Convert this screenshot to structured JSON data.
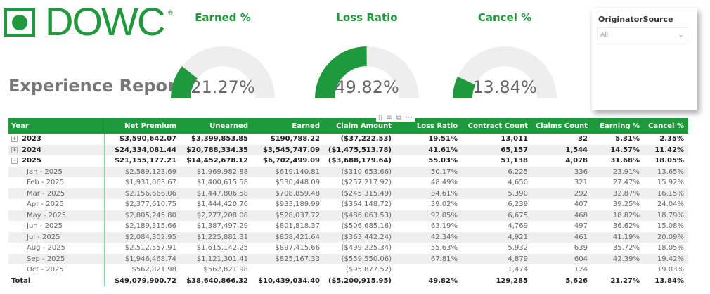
{
  "logo": {
    "text": "DOWC",
    "reg": "®"
  },
  "title": "Experience Report",
  "gauges": [
    {
      "title": "Earned %",
      "value_label": "21.27%",
      "value": 21.27
    },
    {
      "title": "Loss Ratio",
      "value_label": "49.82%",
      "value": 49.82
    },
    {
      "title": "Cancel %",
      "value_label": "13.84%",
      "value": 13.84
    }
  ],
  "colors": {
    "accent": "#1e9a3c",
    "track": "#eeeeee"
  },
  "slicer": {
    "title": "OriginatorSource",
    "value": "All"
  },
  "table": {
    "headers": [
      "Year",
      "Net Premium",
      "Unearned",
      "Earned",
      "Claim Amount",
      "Loss Ratio",
      "Contract Count",
      "Claims Count",
      "Earning %",
      "Cancel %"
    ],
    "rows": [
      {
        "type": "year",
        "expand": "+",
        "cells": [
          "2023",
          "$3,590,642.07",
          "$3,399,853.85",
          "$190,788.22",
          "($37,222.53)",
          "19.51%",
          "13,011",
          "32",
          "5.31%",
          "2.35%"
        ]
      },
      {
        "type": "year",
        "expand": "+",
        "cells": [
          "2024",
          "$24,334,081.44",
          "$20,788,334.35",
          "$3,545,747.09",
          "($1,475,513.78)",
          "41.61%",
          "65,157",
          "1,544",
          "14.57%",
          "11.42%"
        ]
      },
      {
        "type": "year",
        "expand": "−",
        "cells": [
          "2025",
          "$21,155,177.21",
          "$14,452,678.12",
          "$6,702,499.09",
          "($3,688,179.64)",
          "55.03%",
          "51,138",
          "4,078",
          "31.68%",
          "18.05%"
        ]
      },
      {
        "type": "month",
        "cells": [
          "Jan - 2025",
          "$2,589,123.69",
          "$1,969,982.88",
          "$619,140.81",
          "($310,653.66)",
          "50.17%",
          "6,225",
          "336",
          "23.91%",
          "13.65%"
        ]
      },
      {
        "type": "month",
        "cells": [
          "Feb - 2025",
          "$1,931,063.67",
          "$1,400,615.58",
          "$530,448.09",
          "($257,217.92)",
          "48.49%",
          "4,650",
          "321",
          "27.47%",
          "15.92%"
        ]
      },
      {
        "type": "month",
        "cells": [
          "Mar - 2025",
          "$2,156,666.06",
          "$1,447,806.58",
          "$708,859.48",
          "($245,315.49)",
          "34.61%",
          "5,390",
          "292",
          "32.87%",
          "16.15%"
        ]
      },
      {
        "type": "month",
        "cells": [
          "Apr - 2025",
          "$2,377,610.75",
          "$1,444,420.76",
          "$933,189.99",
          "($364,148.72)",
          "39.02%",
          "6,239",
          "407",
          "39.25%",
          "24.04%"
        ]
      },
      {
        "type": "month",
        "cells": [
          "May - 2025",
          "$2,805,245.80",
          "$2,277,208.08",
          "$528,037.72",
          "($486,063.53)",
          "92.05%",
          "6,675",
          "468",
          "18.82%",
          "18.79%"
        ]
      },
      {
        "type": "month",
        "cells": [
          "Jun - 2025",
          "$2,189,315.66",
          "$1,387,497.29",
          "$801,818.37",
          "($506,685.16)",
          "63.19%",
          "4,769",
          "497",
          "36.62%",
          "15.08%"
        ]
      },
      {
        "type": "month",
        "cells": [
          "Jul - 2025",
          "$2,084,302.95",
          "$1,225,881.31",
          "$858,421.64",
          "($363,442.24)",
          "42.34%",
          "4,921",
          "461",
          "41.19%",
          "20.09%"
        ]
      },
      {
        "type": "month",
        "cells": [
          "Aug - 2025",
          "$2,512,557.91",
          "$1,615,142.25",
          "$897,415.66",
          "($499,225.34)",
          "55.63%",
          "5,932",
          "639",
          "35.72%",
          "18.05%"
        ]
      },
      {
        "type": "month",
        "cells": [
          "Sep - 2025",
          "$1,946,468.74",
          "$1,121,301.41",
          "$825,167.33",
          "($559,550.06)",
          "67.81%",
          "4,879",
          "604",
          "42.39%",
          "19.42%"
        ]
      },
      {
        "type": "month",
        "cells": [
          "Oct - 2025",
          "$562,821.98",
          "$562,821.98",
          "",
          "($95,877.52)",
          "",
          "1,474",
          "124",
          "",
          "19.03%"
        ]
      },
      {
        "type": "total",
        "cells": [
          "Total",
          "$49,079,900.72",
          "$38,640,866.32",
          "$10,439,034.40",
          "($5,200,915.95)",
          "49.82%",
          "129,285",
          "5,626",
          "21.27%",
          "13.84%"
        ]
      }
    ]
  }
}
